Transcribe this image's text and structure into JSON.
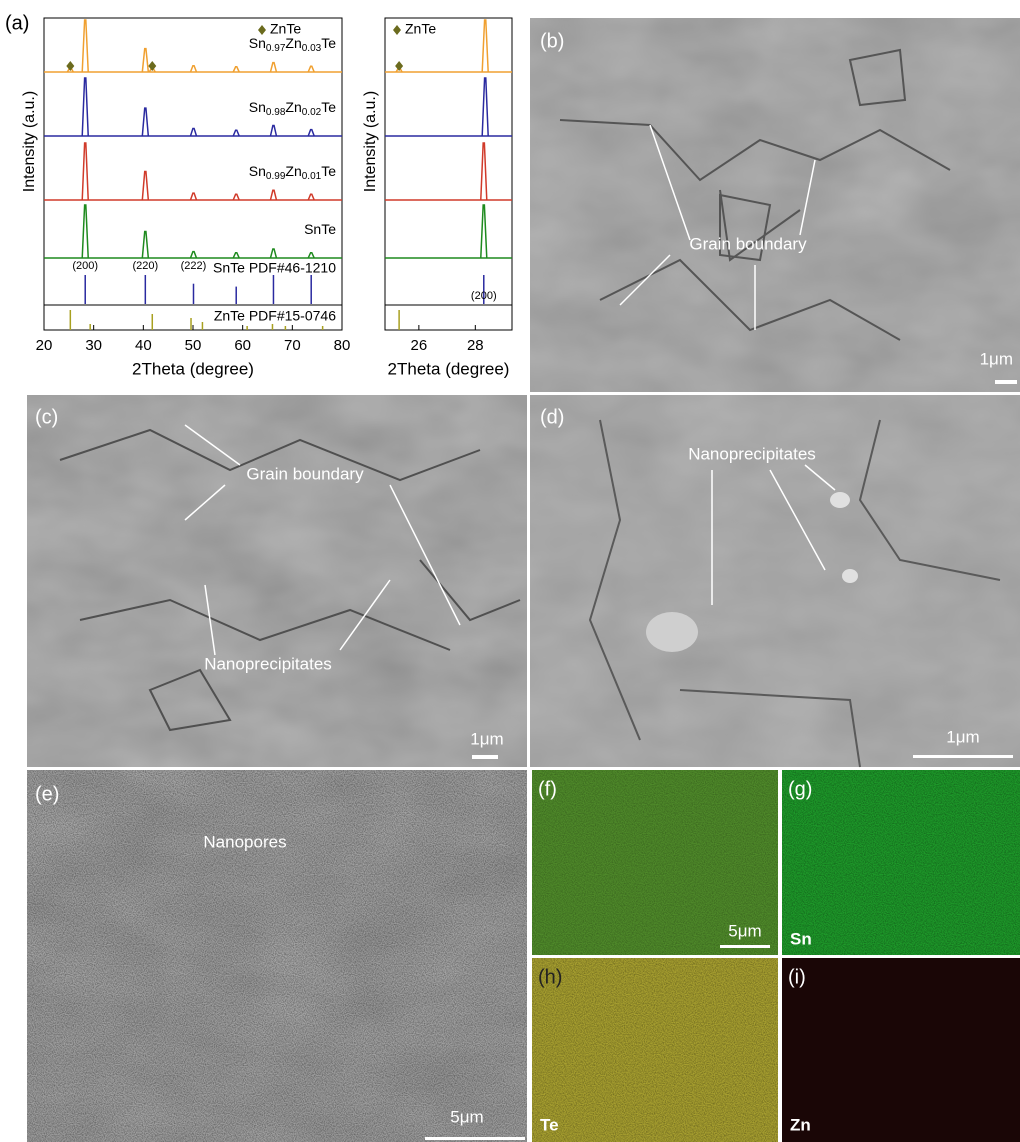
{
  "chart_data": [
    {
      "type": "line",
      "panel_label": "(a)",
      "ylabel": "Intensity (a.u.)",
      "xlabel": "2Theta (degree)",
      "xlim": [
        20,
        80
      ],
      "xticks": [
        20,
        30,
        40,
        50,
        60,
        70,
        80
      ],
      "ylim": [
        0,
        100
      ],
      "series": [
        {
          "name": "Sn0.97Zn0.03Te",
          "color": "#f0a030",
          "x": [
            25.3,
            28.3,
            40.4,
            41.8,
            50.1,
            58.7,
            66.2,
            73.8
          ],
          "values": [
            8,
            100,
            45,
            8,
            12,
            10,
            18,
            11
          ]
        },
        {
          "name": "Sn0.98Zn0.02Te",
          "color": "#2a2aa0",
          "x": [
            28.3,
            40.4,
            50.1,
            58.7,
            66.2,
            73.8
          ],
          "values": [
            100,
            48,
            13,
            10,
            18,
            11
          ]
        },
        {
          "name": "Sn0.99Zn0.01Te",
          "color": "#d03a2a",
          "x": [
            28.3,
            40.4,
            50.1,
            58.7,
            66.2,
            73.8
          ],
          "values": [
            100,
            50,
            12,
            10,
            17,
            10
          ]
        },
        {
          "name": "SnTe",
          "color": "#1e8a1e",
          "x": [
            28.3,
            40.4,
            50.1,
            58.7,
            66.2,
            73.8
          ],
          "values": [
            100,
            50,
            12,
            10,
            17,
            10
          ]
        }
      ],
      "markers": {
        "name": "ZnTe",
        "color": "#6b6b1e",
        "x": [
          25.3,
          41.8
        ]
      },
      "references": [
        {
          "name": "SnTe PDF#46-1210",
          "color": "#2a2aa0",
          "x": [
            28.3,
            40.4,
            50.1,
            58.7,
            66.2,
            73.8
          ],
          "values": [
            100,
            100,
            70,
            60,
            100,
            100
          ]
        },
        {
          "name": "ZnTe PDF#15-0746",
          "color": "#a8a020",
          "x": [
            25.3,
            29.3,
            41.8,
            49.6,
            51.9,
            60.9,
            66.0,
            68.6,
            76.1
          ],
          "values": [
            100,
            30,
            80,
            60,
            40,
            20,
            30,
            20,
            20
          ]
        }
      ],
      "annotations": [
        {
          "text": "(200)",
          "x": 28.3
        },
        {
          "text": "(220)",
          "x": 40.4
        },
        {
          "text": "(222)",
          "x": 50.1
        }
      ]
    },
    {
      "type": "line",
      "ylabel": "Intensity (a.u.)",
      "xlabel": "2Theta (degree)",
      "xlim": [
        24.8,
        29.3
      ],
      "xticks": [
        26,
        28
      ],
      "ylim": [
        0,
        100
      ],
      "series": [
        {
          "name": "Sn0.97Zn0.03Te",
          "color": "#f0a030",
          "x": [
            25.3,
            28.35
          ],
          "values": [
            8,
            100
          ]
        },
        {
          "name": "Sn0.98Zn0.02Te",
          "color": "#2a2aa0",
          "x": [
            28.35
          ],
          "values": [
            100
          ]
        },
        {
          "name": "Sn0.99Zn0.01Te",
          "color": "#d03a2a",
          "x": [
            28.3
          ],
          "values": [
            100
          ]
        },
        {
          "name": "SnTe",
          "color": "#1e8a1e",
          "x": [
            28.3
          ],
          "values": [
            100
          ]
        }
      ],
      "markers": {
        "name": "ZnTe",
        "color": "#6b6b1e",
        "x": [
          25.3
        ]
      },
      "references": [
        {
          "name": "",
          "color": "#2a2aa0",
          "x": [
            28.3
          ],
          "values": [
            100
          ]
        },
        {
          "name": "",
          "color": "#a8a020",
          "x": [
            25.3
          ],
          "values": [
            100
          ]
        }
      ],
      "annotations": [
        {
          "text": "(200)",
          "x": 28.3
        }
      ]
    }
  ],
  "panels": {
    "b": {
      "label": "(b)",
      "annotation": "Grain boundary",
      "scale": "1μm"
    },
    "c": {
      "label": "(c)",
      "annotations": [
        "Grain boundary",
        "Nanoprecipitates"
      ],
      "scale": "1μm"
    },
    "d": {
      "label": "(d)",
      "annotation": "Nanoprecipitates",
      "scale": "1μm"
    },
    "e": {
      "label": "(e)",
      "annotation": "Nanopores",
      "scale": "5μm"
    },
    "f": {
      "label": "(f)",
      "scale": "5μm"
    },
    "g": {
      "label": "(g)",
      "element": "Sn"
    },
    "h": {
      "label": "(h)",
      "element": "Te"
    },
    "i": {
      "label": "(i)",
      "element": "Zn"
    }
  }
}
